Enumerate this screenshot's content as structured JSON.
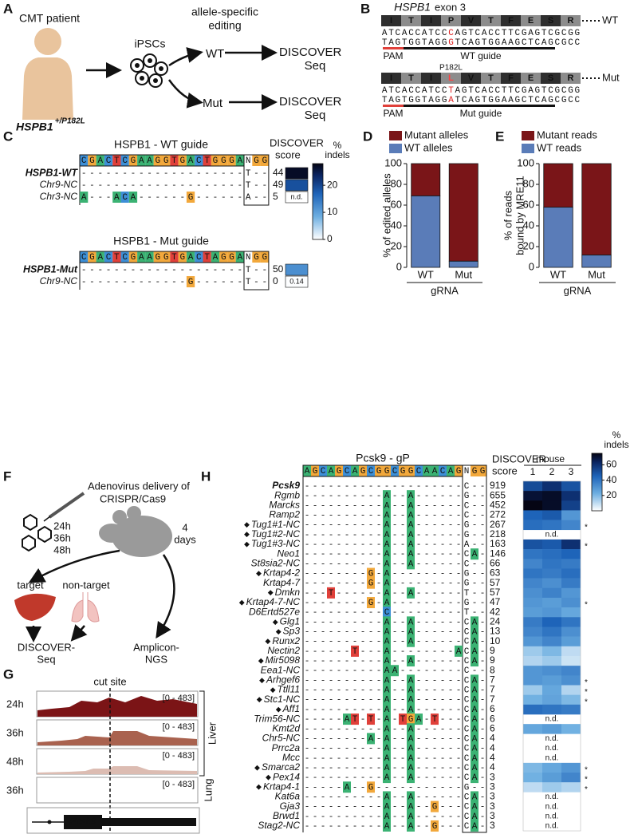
{
  "panel_a": {
    "label": "A",
    "patient": "CMT patient",
    "genotype": "HSPB1",
    "genotype_sup": "+/P182L",
    "cells": "iPSCs",
    "editing": [
      "allele-specific",
      "editing"
    ],
    "arms": [
      "WT",
      "Mut"
    ],
    "readout": [
      "DISCOVER",
      "Seq"
    ]
  },
  "panel_b": {
    "label": "B",
    "gene": "HSPB1",
    "exon": "exon 3",
    "alleles": [
      {
        "name": "WT",
        "protein": "ITIPVTFESR",
        "top": "ATCACCATCCCAGTCACCTTCGAGTCGCGG",
        "bottom": "TAGTGGTAGGGTCAGTGGAAGCTCAGCGCC",
        "pam": "PAM",
        "guide": "WT guide",
        "red_base": 10
      },
      {
        "name": "Mut",
        "mutation": "P182L",
        "protein": "ITILVTFESR",
        "top": "ATCACCATCCTAGTCACCTTCGAGTCGCGG",
        "bottom": "TAGTGGTAGGATCAGTGGAAGCTCAGCGCC",
        "pam": "PAM",
        "guide": "Mut guide",
        "red_base": 10,
        "red_residue": 3
      }
    ]
  },
  "panel_c": {
    "label": "C",
    "score_header": [
      "DISCOVER",
      "score"
    ],
    "colorbar": {
      "title": [
        "%",
        "indels"
      ],
      "lim": [
        0,
        28
      ],
      "ticks": [
        0,
        10,
        20
      ]
    },
    "guides": [
      {
        "title": "HSPB1 - WT guide",
        "sequence": "CGACTCGAAGGTGACTGGGANGG",
        "sites": [
          {
            "name": "HSPB1-WT",
            "bold": true,
            "sequence": "--------------------T--",
            "score": 44,
            "indels": 27
          },
          {
            "name": "Chr9-NC",
            "sequence": "--------------------T--",
            "score": 49,
            "indels": 19
          },
          {
            "name": "Chr3-NC",
            "sequence": "A---ACA------G------A--",
            "score": 5,
            "indels": "n.d."
          }
        ]
      },
      {
        "title": "HSPB1 - Mut guide",
        "sequence": "CGACTCGAAGGTGACTAGGANGG",
        "sites": [
          {
            "name": "HSPB1-Mut",
            "bold": true,
            "sequence": "--------------------T--",
            "score": 50,
            "indels": 12
          },
          {
            "name": "Chr9-NC",
            "sequence": "-------------G------T--",
            "score": 0,
            "indels": 0.14,
            "indel_label": "0.14"
          }
        ]
      }
    ]
  },
  "panel_d": {
    "label": "D",
    "ylabel": [
      "% of edited alleles"
    ],
    "xlabel": "gRNA",
    "categories": [
      "WT",
      "Mut"
    ],
    "series": [
      {
        "name": "WT alleles",
        "color": "#5a7cb8",
        "values": [
          69,
          6
        ]
      },
      {
        "name": "Mutant alleles",
        "color": "#7a1518",
        "values": [
          31,
          94
        ]
      }
    ],
    "ylim": [
      0,
      100
    ],
    "yticks": [
      0,
      20,
      40,
      60,
      80,
      100
    ]
  },
  "panel_e": {
    "label": "E",
    "ylabel": [
      "% of reads",
      "bound by MRE11"
    ],
    "xlabel": "gRNA",
    "categories": [
      "WT",
      "Mut"
    ],
    "series": [
      {
        "name": "WT reads",
        "color": "#5a7cb8",
        "values": [
          58,
          12
        ]
      },
      {
        "name": "Mutant reads",
        "color": "#7a1518",
        "values": [
          42,
          88
        ]
      }
    ],
    "ylim": [
      0,
      100
    ],
    "yticks": [
      0,
      20,
      40,
      60,
      80,
      100
    ]
  },
  "panel_f": {
    "label": "F",
    "delivery": [
      "Adenovirus delivery of",
      "CRISPR/Cas9"
    ],
    "timepoints": [
      "24h",
      "36h",
      "48h"
    ],
    "late": [
      "4",
      "days"
    ],
    "tissues": [
      "target",
      "non-target"
    ],
    "assays": [
      [
        "DISCOVER-",
        "Seq"
      ],
      [
        "Amplicon-",
        "NGS"
      ]
    ]
  },
  "panel_g": {
    "label": "G",
    "cut_site": "cut site",
    "tracks": [
      {
        "time": "24h",
        "range": "[0 - 483]",
        "color": "#7b1416"
      },
      {
        "time": "36h",
        "range": "[0 - 483]",
        "color": "#a9624f"
      },
      {
        "time": "48h",
        "range": "[0 - 483]",
        "color": "#dcbcb2"
      },
      {
        "time": "36h",
        "range": "[0 - 483]"
      }
    ],
    "groups": [
      "Liver",
      "Lung"
    ],
    "gene": "Pcsk9"
  },
  "panel_h": {
    "label": "H",
    "guide_title": "Pcsk9 - gP",
    "guide": "AGCAGCAGCGGCGGCAACAGNGG",
    "score_header": [
      "DISCOVER",
      "score"
    ],
    "mouse_header": "mouse",
    "mice": [
      1,
      2,
      3
    ],
    "colorbar": {
      "title": [
        "%",
        "indels"
      ],
      "lim": [
        0,
        75
      ],
      "ticks": [
        20,
        40,
        60
      ]
    },
    "sites": [
      {
        "name": "Pcsk9",
        "bold": true,
        "sequence": "--------------------C--",
        "score": 919,
        "indels": [
          52,
          60,
          50
        ]
      },
      {
        "name": "Rgmb",
        "sequence": "----------A--A------G--",
        "score": 655,
        "indels": [
          70,
          72,
          60
        ]
      },
      {
        "name": "Marcks",
        "sequence": "----------A--A------C--",
        "score": 452,
        "indels": [
          75,
          72,
          55
        ]
      },
      {
        "name": "Ramp2",
        "sequence": "----------A--A------C--",
        "score": 272,
        "indels": [
          45,
          48,
          30
        ]
      },
      {
        "name": "Tug1#1-NC",
        "symbol": "◆",
        "sequence": "----------A--A------G--",
        "score": 267,
        "indels": [
          42,
          40,
          35
        ],
        "note": "*"
      },
      {
        "name": "Tug1#2-NC",
        "symbol": "◆",
        "sequence": "----------A--A------G--",
        "score": 218,
        "indels": "n.d."
      },
      {
        "name": "Tug1#3-NC",
        "symbol": "◆",
        "sequence": "----------A--A------A--",
        "score": 163,
        "indels": [
          50,
          48,
          60
        ],
        "note": "*"
      },
      {
        "name": "Neo1",
        "sequence": "----------A--A------CA-",
        "score": 146,
        "indels": [
          40,
          42,
          45
        ]
      },
      {
        "name": "St8sia2-NC",
        "sequence": "----------A--A------C--",
        "score": 66,
        "indels": [
          35,
          40,
          38
        ]
      },
      {
        "name": "Krtap4-2",
        "symbol": "◆",
        "sequence": "--------G-A---------G--",
        "score": 63,
        "indels": [
          40,
          38,
          42
        ]
      },
      {
        "name": "Krtap4-7",
        "sequence": "--------G-A---------G--",
        "score": 57,
        "indels": [
          35,
          32,
          38
        ]
      },
      {
        "name": "Dmkn",
        "symbol": "◆",
        "sequence": "---T------A--A------T--",
        "score": 57,
        "indels": [
          32,
          36,
          30
        ]
      },
      {
        "name": "Krtap4-7-NC",
        "symbol": "◆",
        "sequence": "--------G-A---------G--",
        "score": 47,
        "indels": [
          30,
          28,
          32
        ],
        "note": "*"
      },
      {
        "name": "D6Ertd527e",
        "sequence": "----------C---------T--",
        "score": 42,
        "indels": [
          28,
          30,
          25
        ]
      },
      {
        "name": "Glg1",
        "symbol": "◆",
        "sequence": "----------A--A------CA-",
        "score": 24,
        "indels": [
          38,
          45,
          40
        ]
      },
      {
        "name": "Sp3",
        "symbol": "◆",
        "sequence": "----------A--A------CA-",
        "score": 13,
        "indels": [
          35,
          40,
          32
        ]
      },
      {
        "name": "Runx2",
        "symbol": "◆",
        "sequence": "----------A--A------CA-",
        "score": 10,
        "indels": [
          30,
          35,
          28
        ]
      },
      {
        "name": "Nectin2",
        "sequence": "------T---A--------ACA-",
        "score": 9,
        "indels": [
          15,
          20,
          10
        ]
      },
      {
        "name": "Mir5098",
        "symbol": "◆",
        "sequence": "----------A--A------CA-",
        "score": 9,
        "indels": [
          12,
          15,
          8
        ]
      },
      {
        "name": "Eea1-NC",
        "sequence": "----------AA--------C--",
        "score": 8,
        "indels": [
          30,
          32,
          35
        ]
      },
      {
        "name": "Arhgef6",
        "symbol": "◆",
        "sequence": "----------A--A------CA-",
        "score": 7,
        "indels": [
          30,
          28,
          32
        ],
        "note": "*"
      },
      {
        "name": "Ttll11",
        "symbol": "◆",
        "sequence": "----------A--A------CA-",
        "score": 7,
        "indels": [
          15,
          25,
          12
        ],
        "note": "*"
      },
      {
        "name": "Stc1-NC",
        "symbol": "◆",
        "sequence": "----------A--A------CA-",
        "score": 7,
        "indels": [
          22,
          26,
          20
        ],
        "note": "*"
      },
      {
        "name": "Aff1",
        "symbol": "◆",
        "sequence": "----------A--A------CA-",
        "score": 6,
        "indels": [
          42,
          40,
          38
        ]
      },
      {
        "name": "Trim56-NC",
        "sequence": "-----AT-T-A-TGA-T---CA-",
        "score": 6,
        "indels": "n.d."
      },
      {
        "name": "Kmt2d",
        "sequence": "----------A--A------CA-",
        "score": 6,
        "indels": [
          25,
          28,
          22
        ]
      },
      {
        "name": "Chr5-NC",
        "sequence": "--------A-A--A------CA-",
        "score": 4,
        "indels": "n.d."
      },
      {
        "name": "Prrc2a",
        "sequence": "----------A--A------CA-",
        "score": 4,
        "indels": "n.d."
      },
      {
        "name": "Mcc",
        "sequence": "----------A--A------CA-",
        "score": 4,
        "indels": "n.d."
      },
      {
        "name": "Smarca2",
        "symbol": "◆",
        "sequence": "----------A--A------CA-",
        "score": 4,
        "indels": [
          20,
          25,
          30
        ],
        "note": "*"
      },
      {
        "name": "Pex14",
        "symbol": "◆",
        "sequence": "----------A--A------CA-",
        "score": 3,
        "indels": [
          22,
          28,
          35
        ],
        "note": "*"
      },
      {
        "name": "Krtap4-1",
        "symbol": "◆",
        "sequence": "-----A--G-----------G--",
        "score": 3,
        "indels": [
          10,
          15,
          12
        ],
        "note": "*"
      },
      {
        "name": "Kat6a",
        "sequence": "----------A--A------CA-",
        "score": 3,
        "indels": "n.d."
      },
      {
        "name": "Gja3",
        "sequence": "----------A--A--G---CA-",
        "score": 3,
        "indels": "n.d."
      },
      {
        "name": "Brwd1",
        "sequence": "----------A--A------CA-",
        "score": 3,
        "indels": "n.d."
      },
      {
        "name": "Stag2-NC",
        "sequence": "----------A--A--G---CA-",
        "score": 3,
        "indels": "n.d."
      }
    ]
  }
}
